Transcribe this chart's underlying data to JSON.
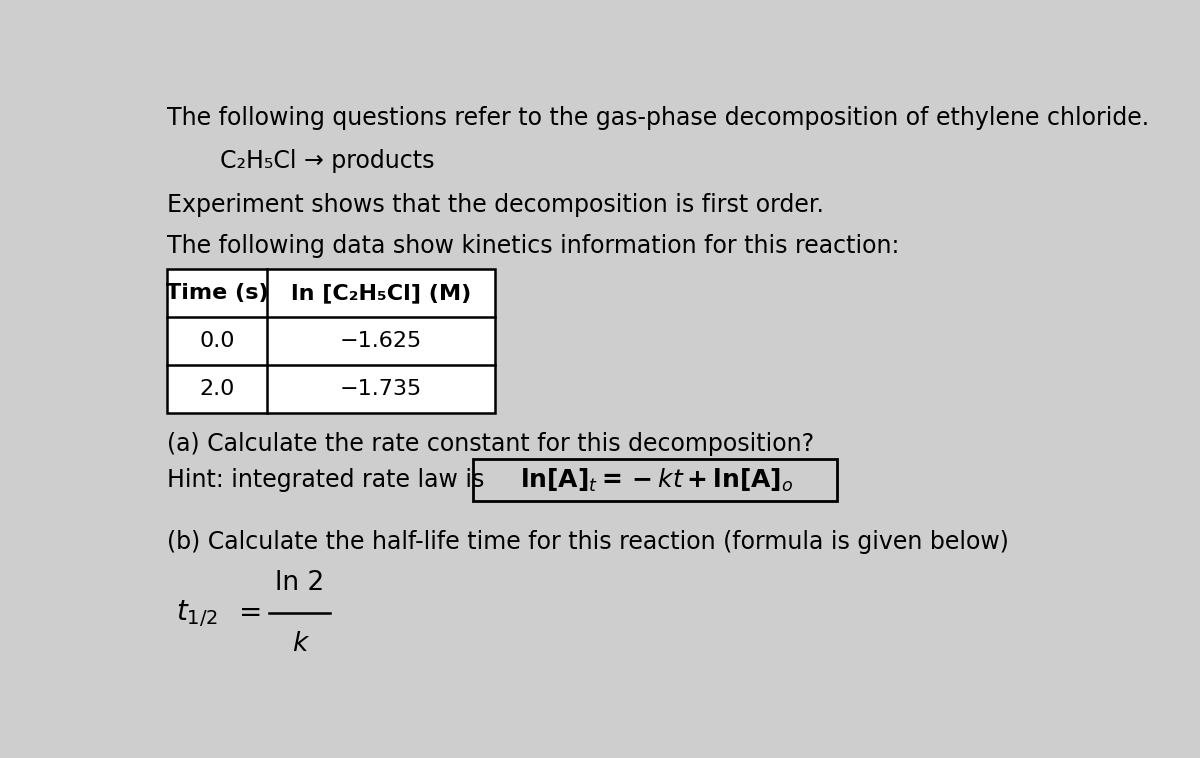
{
  "bg_color": "#cecece",
  "text_color": "#000000",
  "line1": "The following questions refer to the gas-phase decomposition of ethylene chloride.",
  "line2_indent": "C₂H₅Cl → products",
  "line3": "Experiment shows that the decomposition is first order.",
  "line4": "The following data show kinetics information for this reaction:",
  "table_header_col1": "Time (s)",
  "table_header_col2": "ln [C₂H₅Cl] (M)",
  "table_row1_col1": "0.0",
  "table_row1_col2": "−1.625",
  "table_row2_col1": "2.0",
  "table_row2_col2": "−1.735",
  "line_a": "(a) Calculate the rate constant for this decomposition?",
  "line_hint_prefix": "Hint: integrated rate law is ",
  "line_b": "(b) Calculate the half-life time for this reaction (formula is given below)",
  "half_life_num": "ln 2",
  "half_life_den": "k",
  "font_size_main": 17,
  "font_size_table": 16,
  "font_size_formula": 18
}
